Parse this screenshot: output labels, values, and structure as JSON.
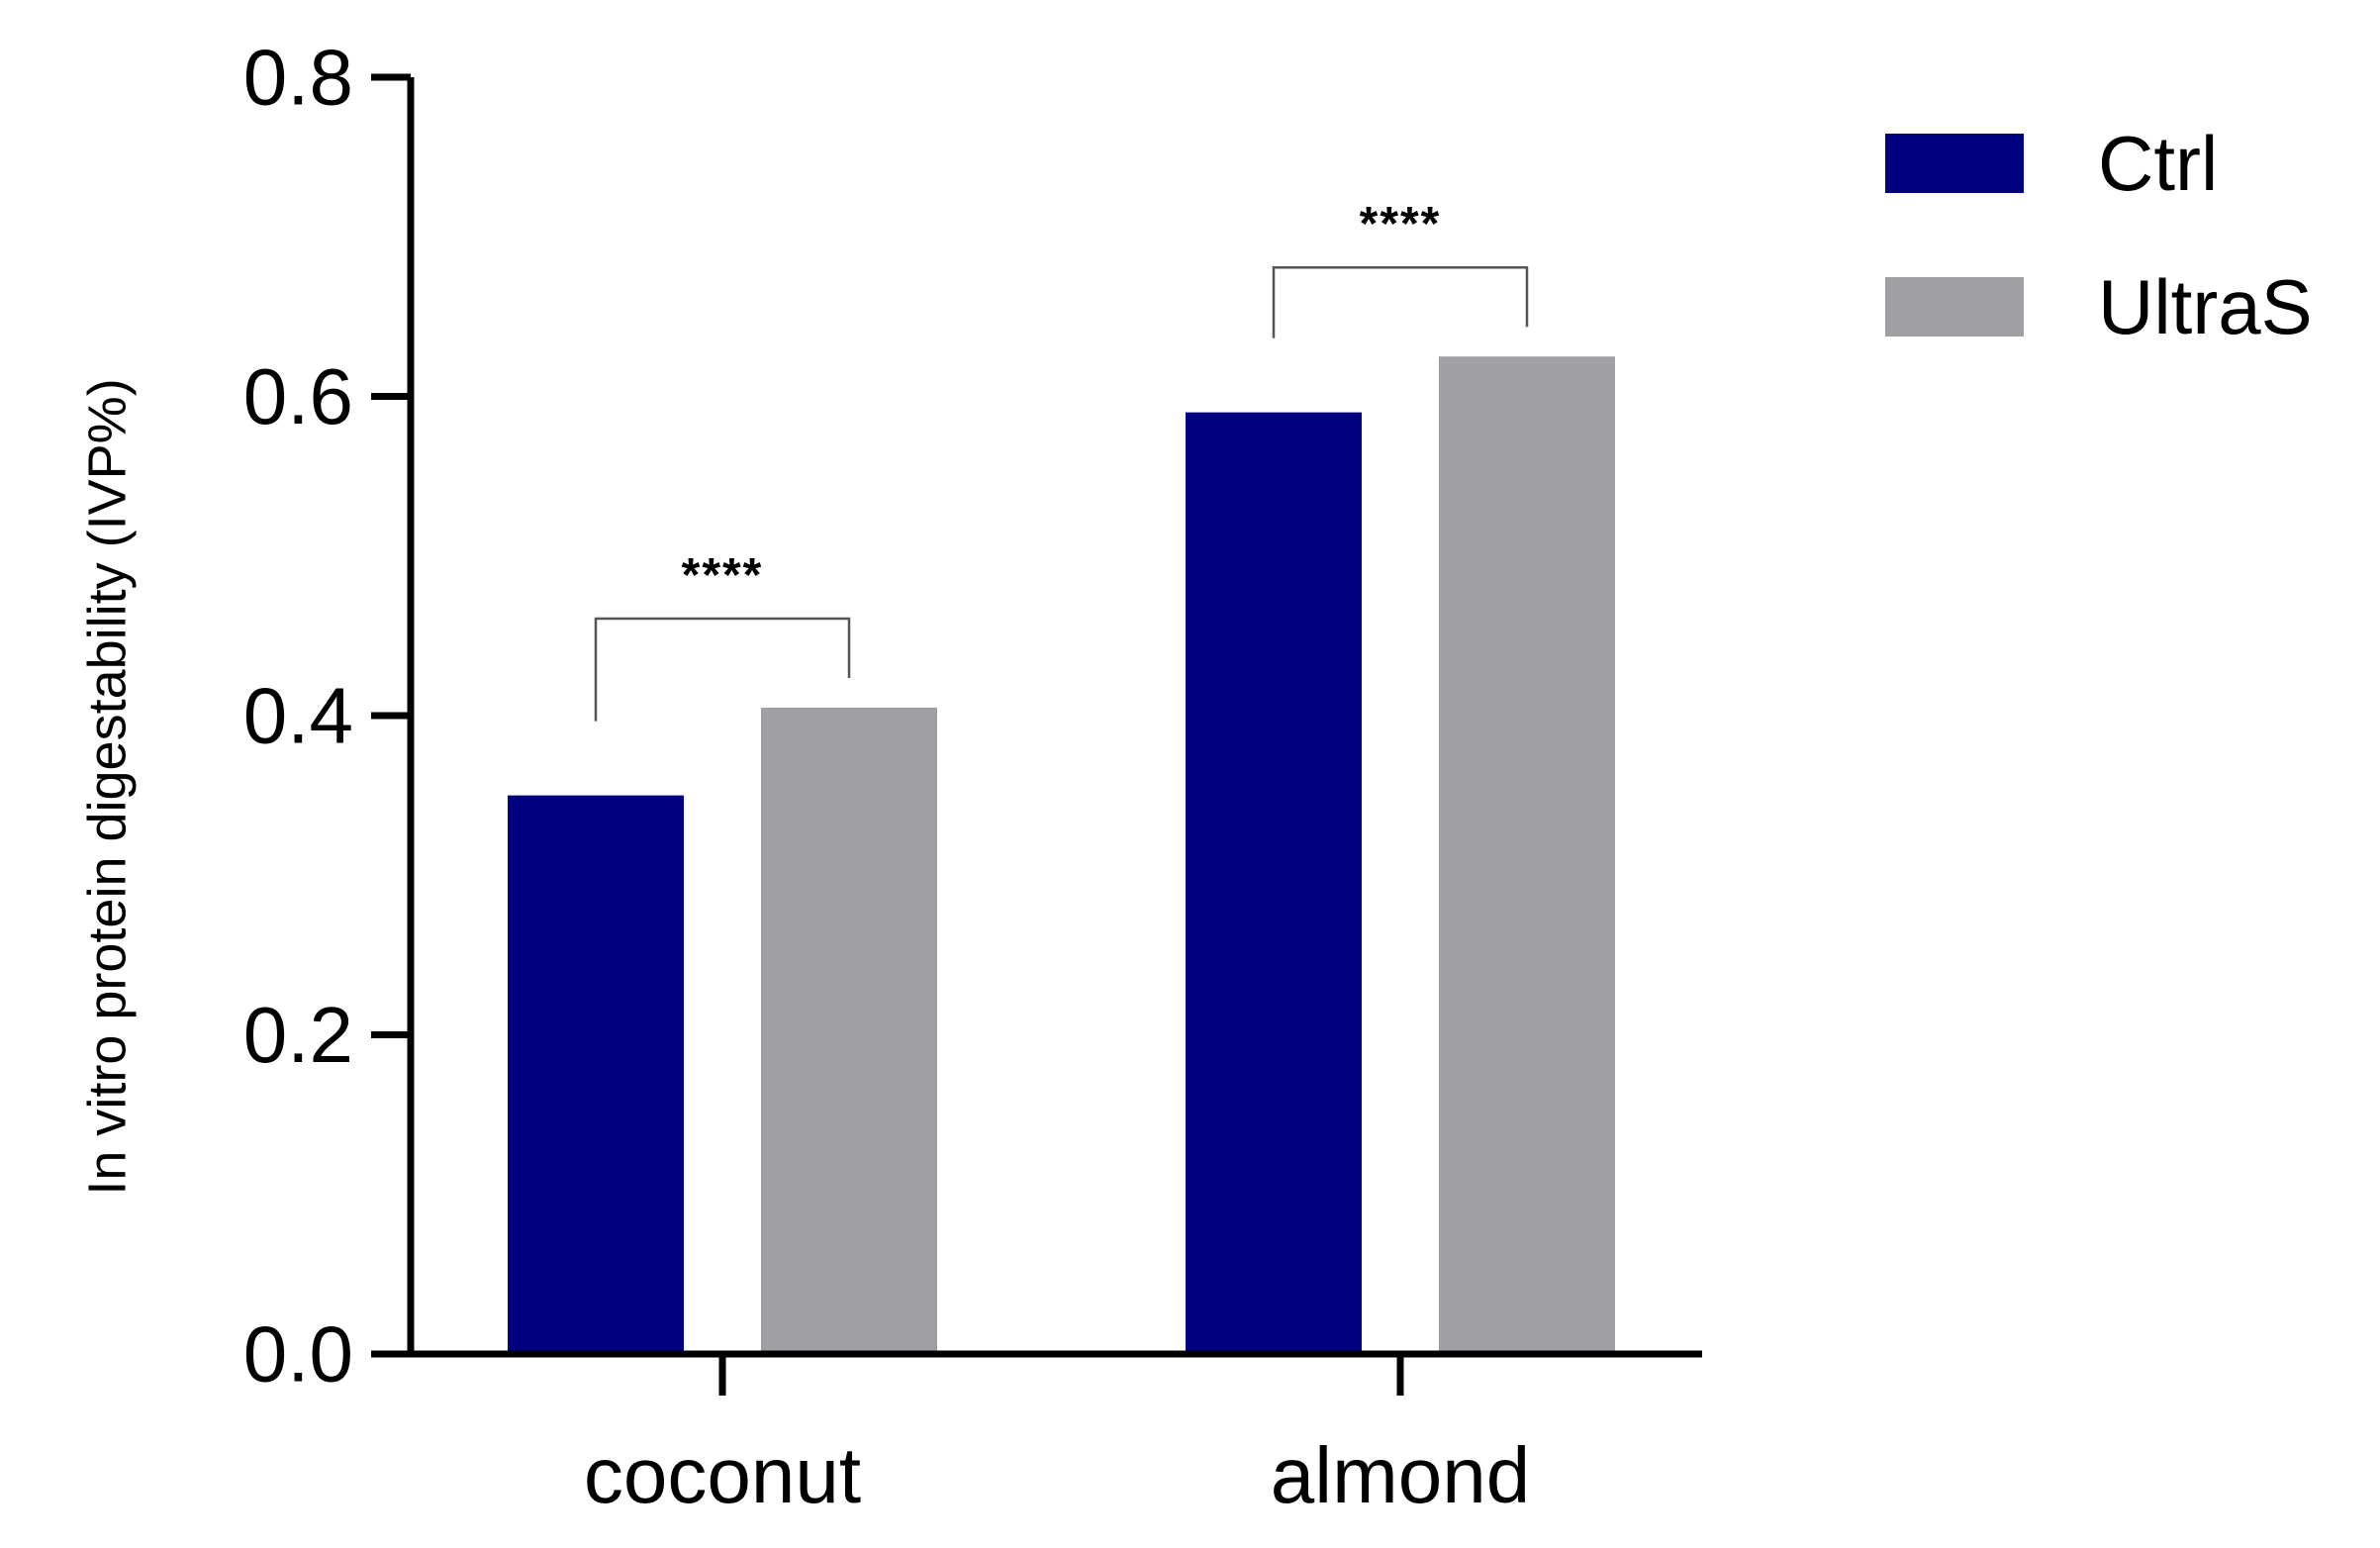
{
  "chart_data": {
    "type": "bar",
    "title": "",
    "xlabel": "",
    "ylabel": "In vitro protein digestability (IVP%)",
    "categories": [
      "coconut",
      "almond"
    ],
    "series": [
      {
        "name": "Ctrl",
        "values": [
          0.35,
          0.59
        ],
        "color": "#000080"
      },
      {
        "name": "UltraS",
        "values": [
          0.405,
          0.625
        ],
        "color": "#a0a0a4"
      }
    ],
    "ylim": [
      0,
      0.8
    ],
    "yticks": [
      "0.0",
      "0.2",
      "0.4",
      "0.6",
      "0.8"
    ],
    "grid": false,
    "legend_position": "top-right",
    "annotations": [
      {
        "category": "coconut",
        "text": "****"
      },
      {
        "category": "almond",
        "text": "****"
      }
    ]
  }
}
